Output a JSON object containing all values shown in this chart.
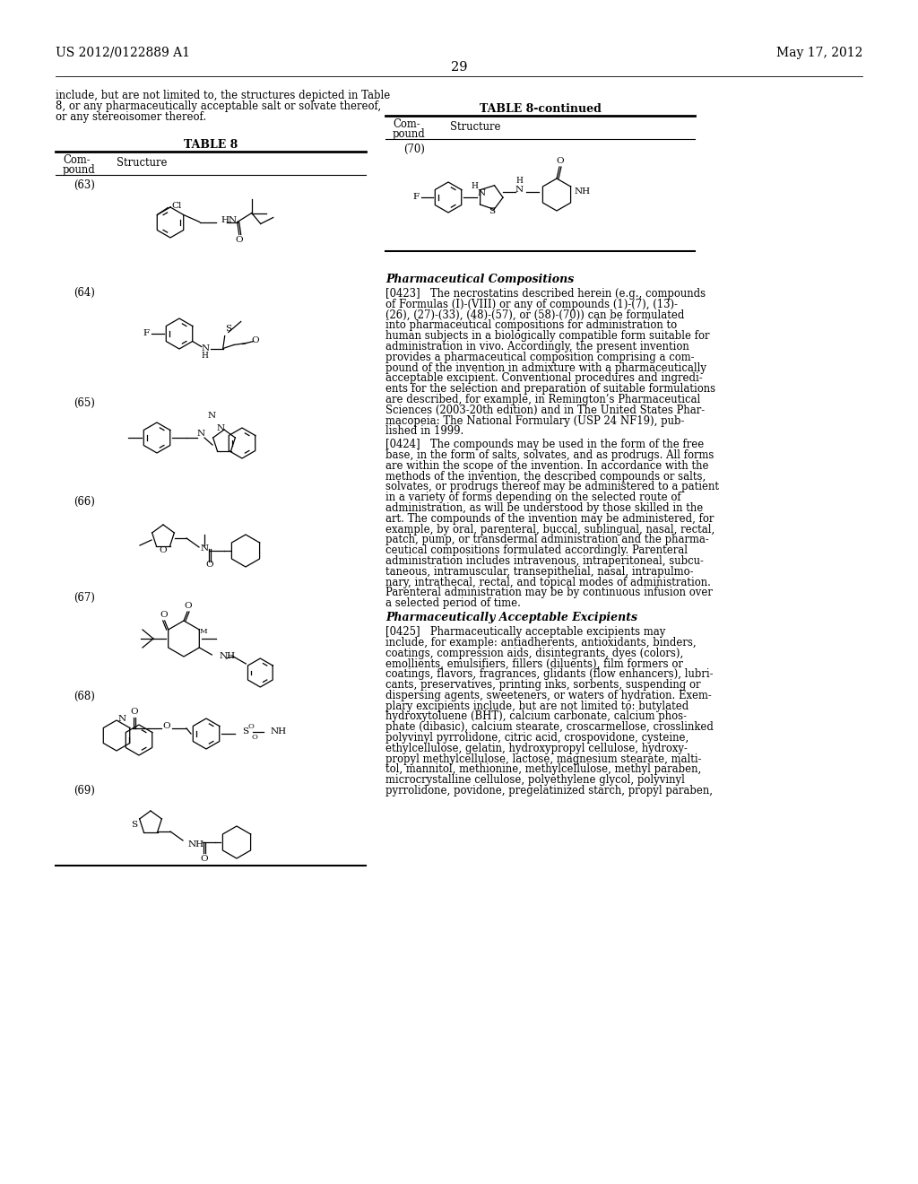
{
  "page_number": "29",
  "left_header": "US 2012/0122889 A1",
  "right_header": "May 17, 2012",
  "bg_color": "#ffffff",
  "intro_lines": [
    "include, but are not limited to, the structures depicted in Table",
    "8, or any pharmaceutically acceptable salt or solvate thereof,",
    "or any stereoisomer thereof."
  ],
  "table_left_title": "TABLE 8",
  "table_right_title": "TABLE 8-continued",
  "compounds_left": [
    "(63)",
    "(64)",
    "(65)",
    "(66)",
    "(67)",
    "(68)",
    "(69)"
  ],
  "compounds_right": [
    "(70)"
  ],
  "section_title1": "Pharmaceutical Compositions",
  "section_title2": "Pharmaceutically Acceptable Excipients",
  "para_0423_lines": [
    "[0423]   The necrostatins described herein (e.g., compounds",
    "of Formulas (I)-(VIII) or any of compounds (1)-(7), (13)-",
    "(26), (27)-(33), (48)-(57), or (58)-(70)) can be formulated",
    "into pharmaceutical compositions for administration to",
    "human subjects in a biologically compatible form suitable for",
    "administration in vivo. Accordingly, the present invention",
    "provides a pharmaceutical composition comprising a com-",
    "pound of the invention in admixture with a pharmaceutically",
    "acceptable excipient. Conventional procedures and ingredi-",
    "ents for the selection and preparation of suitable formulations",
    "are described, for example, in Remington’s Pharmaceutical",
    "Sciences (2003-20th edition) and in The United States Phar-",
    "macopeia: The National Formulary (USP 24 NF19), pub-",
    "lished in 1999."
  ],
  "para_0424_lines": [
    "[0424]   The compounds may be used in the form of the free",
    "base, in the form of salts, solvates, and as prodrugs. All forms",
    "are within the scope of the invention. In accordance with the",
    "methods of the invention, the described compounds or salts,",
    "solvates, or prodrugs thereof may be administered to a patient",
    "in a variety of forms depending on the selected route of",
    "administration, as will be understood by those skilled in the",
    "art. The compounds of the invention may be administered, for",
    "example, by oral, parenteral, buccal, sublingual, nasal, rectal,",
    "patch, pump, or transdermal administration and the pharma-",
    "ceutical compositions formulated accordingly. Parenteral",
    "administration includes intravenous, intraperitoneal, subcu-",
    "taneous, intramuscular, transepithelial, nasal, intrapulmo-",
    "nary, intrathecal, rectal, and topical modes of administration.",
    "Parenteral administration may be by continuous infusion over",
    "a selected period of time."
  ],
  "para_0425_lines": [
    "[0425]   Pharmaceutically acceptable excipients may",
    "include, for example: antiadherents, antioxidants, binders,",
    "coatings, compression aids, disintegrants, dyes (colors),",
    "emollients, emulsifiers, fillers (diluents), film formers or",
    "coatings, flavors, fragrances, glidants (flow enhancers), lubri-",
    "cants, preservatives, printing inks, sorbents, suspending or",
    "dispersing agents, sweeteners, or waters of hydration. Exem-",
    "plary excipients include, but are not limited to: butylated",
    "hydroxytoluene (BHT), calcium carbonate, calcium phos-",
    "phate (dibasic), calcium stearate, croscarmellose, crosslinked",
    "polyvinyl pyrrolidone, citric acid, crospovidone, cysteine,",
    "ethylcellulose, gelatin, hydroxypropyl cellulose, hydroxy-",
    "propyl methylcellulose, lactose, magnesium stearate, malti-",
    "tol, mannitol, methionine, methylcellulose, methyl paraben,",
    "microcrystalline cellulose, polyethylene glycol, polyvinyl",
    "pyrrolidone, povidone, pregelatinized starch, propyl paraben,"
  ]
}
